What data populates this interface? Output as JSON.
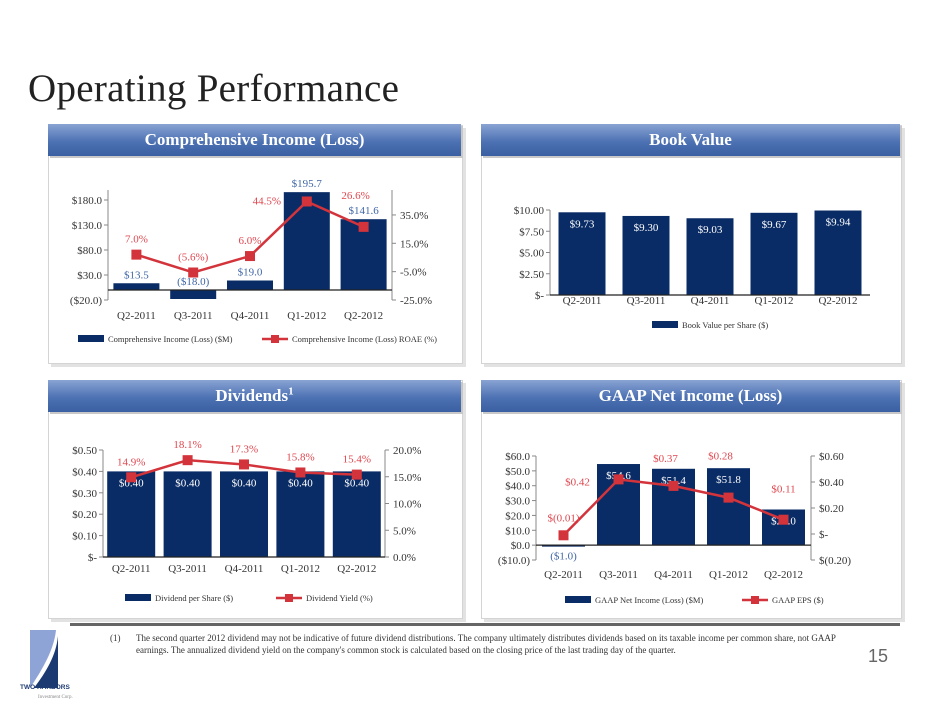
{
  "title": "Operating Performance",
  "panels": {
    "comprehensive": "Comprehensive Income (Loss)",
    "book_value": "Book Value",
    "dividends": "Dividends",
    "dividends_footnote_mark": "1",
    "gaap": "GAAP Net Income (Loss)"
  },
  "colors": {
    "bar": "#0a2c66",
    "line": "#d3343b",
    "line_label": "#e0474f",
    "bar_label_outside": "#3f66a6",
    "header": "#4d72b3"
  },
  "chart_data": [
    {
      "type": "bar+line",
      "categories": [
        "Q2-2011",
        "Q3-2011",
        "Q4-2011",
        "Q1-2012",
        "Q2-2012"
      ],
      "ylim": [
        -20,
        200
      ],
      "y2lim": [
        -25,
        52.6
      ],
      "yticks": [
        -20,
        30,
        80,
        130,
        180
      ],
      "ytick_labels": [
        "($20.0)",
        "$30.0",
        "$80.0",
        "$130.0",
        "$180.0"
      ],
      "y2ticks": [
        -25,
        -5,
        15,
        35
      ],
      "y2tick_labels": [
        "-25.0%",
        "-5.0%",
        "15.0%",
        "35.0%"
      ],
      "bars": {
        "name": "Comprehensive Income (Loss) ($M)",
        "values": [
          13.5,
          -18.0,
          19.0,
          195.7,
          141.6
        ],
        "labels": [
          "$13.5",
          "($18.0)",
          "$19.0",
          "$195.7",
          "$141.6"
        ]
      },
      "line": {
        "name": "Comprehensive Income (Loss) ROAE (%)",
        "values": [
          7.0,
          -5.6,
          6.0,
          44.5,
          26.6
        ],
        "labels": [
          "7.0%",
          "(5.6%)",
          "6.0%",
          "44.5%",
          "26.6%"
        ]
      },
      "legend": "bottom"
    },
    {
      "type": "bar",
      "categories": [
        "Q2-2011",
        "Q3-2011",
        "Q4-2011",
        "Q1-2012",
        "Q2-2012"
      ],
      "ylim": [
        0,
        10
      ],
      "yticks": [
        0,
        2.5,
        5,
        7.5,
        10
      ],
      "ytick_labels": [
        "$-",
        "$2.50",
        "$5.00",
        "$7.50",
        "$10.00"
      ],
      "bars": {
        "name": "Book Value per Share ($)",
        "values": [
          9.73,
          9.3,
          9.03,
          9.67,
          9.94
        ],
        "labels": [
          "$9.73",
          "$9.30",
          "$9.03",
          "$9.67",
          "$9.94"
        ]
      },
      "legend": "bottom"
    },
    {
      "type": "bar+line",
      "categories": [
        "Q2-2011",
        "Q3-2011",
        "Q4-2011",
        "Q1-2012",
        "Q2-2012"
      ],
      "ylim": [
        0,
        0.5
      ],
      "y2lim": [
        0,
        20
      ],
      "yticks": [
        0,
        0.1,
        0.2,
        0.3,
        0.4,
        0.5
      ],
      "ytick_labels": [
        "$-",
        "$0.10",
        "$0.20",
        "$0.30",
        "$0.40",
        "$0.50"
      ],
      "y2ticks": [
        0,
        5,
        10,
        15,
        20
      ],
      "y2tick_labels": [
        "0.0%",
        "5.0%",
        "10.0%",
        "15.0%",
        "20.0%"
      ],
      "bars": {
        "name": "Dividend per Share ($)",
        "values": [
          0.4,
          0.4,
          0.4,
          0.4,
          0.4
        ],
        "labels": [
          "$0.40",
          "$0.40",
          "$0.40",
          "$0.40",
          "$0.40"
        ]
      },
      "line": {
        "name": "Dividend Yield (%)",
        "values": [
          14.9,
          18.1,
          17.3,
          15.8,
          15.4
        ],
        "labels": [
          "14.9%",
          "18.1%",
          "17.3%",
          "15.8%",
          "15.4%"
        ]
      },
      "legend": "bottom"
    },
    {
      "type": "bar+line",
      "categories": [
        "Q2-2011",
        "Q3-2011",
        "Q4-2011",
        "Q1-2012",
        "Q2-2012"
      ],
      "ylim": [
        -10,
        60
      ],
      "y2lim": [
        -0.2,
        0.6
      ],
      "yticks": [
        -10,
        0,
        10,
        20,
        30,
        40,
        50,
        60
      ],
      "ytick_labels": [
        "($10.0)",
        "$0.0",
        "$10.0",
        "$20.0",
        "$30.0",
        "$40.0",
        "$50.0",
        "$60.0"
      ],
      "y2ticks": [
        -0.2,
        0,
        0.2,
        0.4,
        0.6
      ],
      "y2tick_labels": [
        "$(0.20)",
        "$-",
        "$0.20",
        "$0.40",
        "$0.60"
      ],
      "bars": {
        "name": "GAAP Net Income (Loss) ($M)",
        "values": [
          -1.0,
          54.6,
          51.4,
          51.8,
          24.0
        ],
        "labels": [
          "($1.0)",
          "$54.6",
          "$51.4",
          "$51.8",
          "$24.0"
        ]
      },
      "line": {
        "name": "GAAP EPS ($)",
        "values": [
          -0.01,
          0.42,
          0.37,
          0.28,
          0.11
        ],
        "labels": [
          "$(0.01)",
          "$0.42",
          "$0.37",
          "$0.28",
          "$0.11"
        ]
      },
      "legend": "bottom"
    }
  ],
  "footnote": {
    "number": "(1)",
    "text": "The second quarter 2012 dividend may not be indicative of future dividend distributions.  The company ultimately distributes dividends based on its taxable income per common share, not GAAP earnings. The annualized dividend yield on the company's common stock is calculated based on the closing price of the last trading day of the quarter."
  },
  "page_number": "15",
  "logo": {
    "name": "TWO HARBORS",
    "sub": "Investment Corp."
  }
}
